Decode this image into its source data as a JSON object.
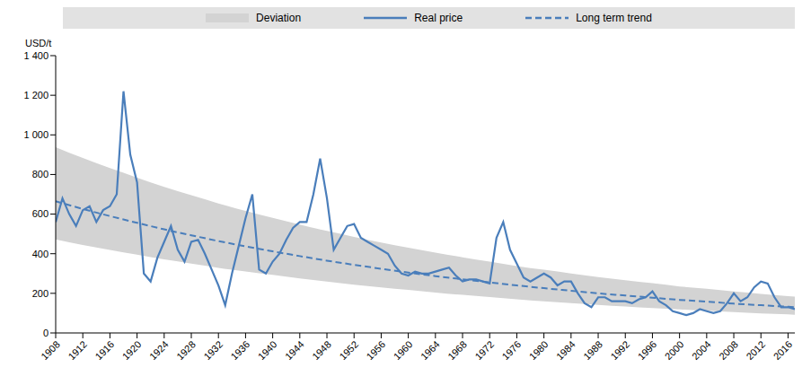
{
  "chart_data": {
    "type": "line",
    "y_label": "USD/t",
    "legend": "top",
    "grid": false,
    "xlim": [
      1908,
      2017
    ],
    "xticks": [
      1908,
      1912,
      1916,
      1920,
      1924,
      1928,
      1932,
      1936,
      1940,
      1944,
      1948,
      1952,
      1956,
      1960,
      1964,
      1968,
      1972,
      1976,
      1980,
      1984,
      1988,
      1992,
      1996,
      2000,
      2004,
      2008,
      2012,
      2016
    ],
    "ylim": [
      0,
      1400
    ],
    "yticks": [
      0,
      200,
      400,
      600,
      800,
      {
        "value": 1000,
        "label": "1 000"
      },
      {
        "value": 1200,
        "label": "1 200"
      },
      {
        "value": 1400,
        "label": "1 400"
      }
    ],
    "series": [
      {
        "name": "Deviation",
        "type": "area",
        "color": "#d3d3d3",
        "x": [
          1908,
          1912,
          1916,
          1920,
          1924,
          1928,
          1932,
          1936,
          1940,
          1944,
          1948,
          1952,
          1956,
          1960,
          1964,
          1968,
          1972,
          1976,
          1980,
          1984,
          1988,
          1992,
          1996,
          2000,
          2004,
          2008,
          2012,
          2016,
          2017
        ],
        "lower": [
          472,
          444,
          419,
          395,
          371,
          350,
          329,
          310,
          293,
          275,
          259,
          244,
          230,
          217,
          204,
          192,
          181,
          170,
          160,
          151,
          142,
          134,
          126,
          119,
          112,
          105,
          99,
          94,
          92
        ],
        "upper": [
          938,
          883,
          832,
          784,
          737,
          695,
          654,
          616,
          581,
          547,
          515,
          485,
          457,
          430,
          405,
          382,
          360,
          338,
          319,
          300,
          282,
          266,
          251,
          235,
          223,
          209,
          197,
          186,
          183
        ]
      },
      {
        "name": "Real price",
        "type": "line",
        "color": "#4a7ebb",
        "line_style": "solid",
        "x": [
          1908,
          1909,
          1910,
          1911,
          1912,
          1913,
          1914,
          1915,
          1916,
          1917,
          1918,
          1919,
          1920,
          1921,
          1922,
          1923,
          1924,
          1925,
          1926,
          1927,
          1928,
          1929,
          1930,
          1931,
          1932,
          1933,
          1934,
          1935,
          1936,
          1937,
          1938,
          1939,
          1940,
          1941,
          1942,
          1943,
          1944,
          1945,
          1946,
          1947,
          1948,
          1949,
          1950,
          1951,
          1952,
          1953,
          1954,
          1955,
          1956,
          1957,
          1958,
          1959,
          1960,
          1961,
          1962,
          1963,
          1964,
          1965,
          1966,
          1967,
          1968,
          1969,
          1970,
          1971,
          1972,
          1973,
          1974,
          1975,
          1976,
          1977,
          1978,
          1979,
          1980,
          1981,
          1982,
          1983,
          1984,
          1985,
          1986,
          1987,
          1988,
          1989,
          1990,
          1991,
          1992,
          1993,
          1994,
          1995,
          1996,
          1997,
          1998,
          1999,
          2000,
          2001,
          2002,
          2003,
          2004,
          2005,
          2006,
          2007,
          2008,
          2009,
          2010,
          2011,
          2012,
          2013,
          2014,
          2015,
          2016,
          2017
        ],
        "values": [
          560,
          680,
          600,
          540,
          620,
          640,
          560,
          620,
          640,
          700,
          1220,
          900,
          760,
          300,
          260,
          380,
          460,
          540,
          420,
          360,
          460,
          470,
          400,
          320,
          240,
          140,
          300,
          440,
          580,
          700,
          320,
          300,
          360,
          400,
          470,
          530,
          560,
          560,
          700,
          880,
          680,
          420,
          480,
          540,
          550,
          480,
          460,
          440,
          420,
          400,
          340,
          300,
          290,
          310,
          300,
          300,
          310,
          320,
          330,
          290,
          260,
          270,
          270,
          260,
          250,
          480,
          560,
          420,
          350,
          280,
          260,
          280,
          300,
          280,
          240,
          260,
          260,
          200,
          150,
          130,
          180,
          180,
          160,
          160,
          160,
          150,
          170,
          180,
          210,
          160,
          140,
          110,
          100,
          90,
          100,
          120,
          110,
          100,
          110,
          150,
          200,
          160,
          180,
          230,
          260,
          250,
          180,
          130,
          130,
          120
        ]
      },
      {
        "name": "Long term trend",
        "type": "line",
        "color": "#4a7ebb",
        "line_style": "dashed",
        "x": [
          1908,
          1912,
          1916,
          1920,
          1924,
          1928,
          1932,
          1936,
          1940,
          1944,
          1948,
          1952,
          1956,
          1960,
          1964,
          1968,
          1972,
          1976,
          1980,
          1984,
          1988,
          1992,
          1996,
          2000,
          2004,
          2008,
          2012,
          2016,
          2017
        ],
        "values": [
          665,
          626,
          590,
          556,
          523,
          493,
          464,
          437,
          412,
          388,
          365,
          344,
          324,
          305,
          287,
          271,
          255,
          240,
          226,
          213,
          200,
          189,
          178,
          167,
          158,
          148,
          140,
          132,
          130
        ]
      }
    ]
  }
}
